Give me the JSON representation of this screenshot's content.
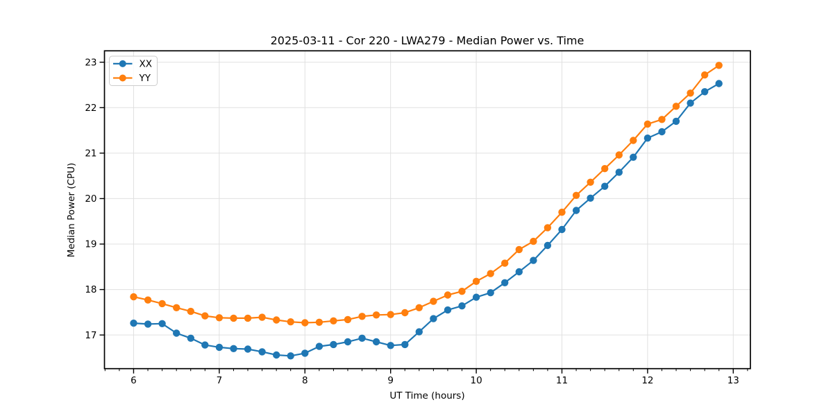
{
  "chart_data": {
    "type": "line",
    "title": "2025-03-11 - Cor 220 - LWA279 - Median Power vs. Time",
    "xlabel": "UT Time (hours)",
    "ylabel": "Median Power (CPU)",
    "xlim": [
      5.66,
      13.2
    ],
    "ylim": [
      16.26,
      23.25
    ],
    "x_ticks": [
      6,
      7,
      8,
      9,
      10,
      11,
      12,
      13
    ],
    "y_ticks": [
      17,
      18,
      19,
      20,
      21,
      22,
      23
    ],
    "x_minor_step": 0.166667,
    "grid": true,
    "grid_color": "#e0e0e0",
    "legend_position": "upper left",
    "marker": "circle",
    "x": [
      6.0,
      6.167,
      6.333,
      6.5,
      6.667,
      6.833,
      7.0,
      7.167,
      7.333,
      7.5,
      7.667,
      7.833,
      8.0,
      8.167,
      8.333,
      8.5,
      8.667,
      8.833,
      9.0,
      9.167,
      9.333,
      9.5,
      9.667,
      9.833,
      10.0,
      10.167,
      10.333,
      10.5,
      10.667,
      10.833,
      11.0,
      11.167,
      11.333,
      11.5,
      11.667,
      11.833,
      12.0,
      12.167,
      12.333,
      12.5,
      12.667,
      12.833
    ],
    "series": [
      {
        "name": "XX",
        "color": "#1f77b4",
        "values": [
          17.26,
          17.24,
          17.25,
          17.04,
          16.93,
          16.78,
          16.73,
          16.7,
          16.69,
          16.63,
          16.56,
          16.54,
          16.6,
          16.75,
          16.79,
          16.85,
          16.93,
          16.85,
          16.77,
          16.79,
          17.07,
          17.36,
          17.55,
          17.64,
          17.83,
          17.93,
          18.15,
          18.39,
          18.64,
          18.97,
          19.32,
          19.74,
          20.01,
          20.27,
          20.58,
          20.91,
          21.33,
          21.47,
          21.7,
          22.1,
          22.35,
          22.53
        ]
      },
      {
        "name": "YY",
        "color": "#ff7f0e",
        "values": [
          17.84,
          17.77,
          17.69,
          17.6,
          17.52,
          17.42,
          17.38,
          17.37,
          17.37,
          17.39,
          17.33,
          17.29,
          17.27,
          17.28,
          17.31,
          17.34,
          17.41,
          17.44,
          17.45,
          17.49,
          17.6,
          17.74,
          17.88,
          17.96,
          18.18,
          18.35,
          18.58,
          18.88,
          19.06,
          19.36,
          19.7,
          20.07,
          20.36,
          20.66,
          20.96,
          21.28,
          21.64,
          21.74,
          22.03,
          22.32,
          22.72,
          22.93
        ]
      }
    ]
  }
}
